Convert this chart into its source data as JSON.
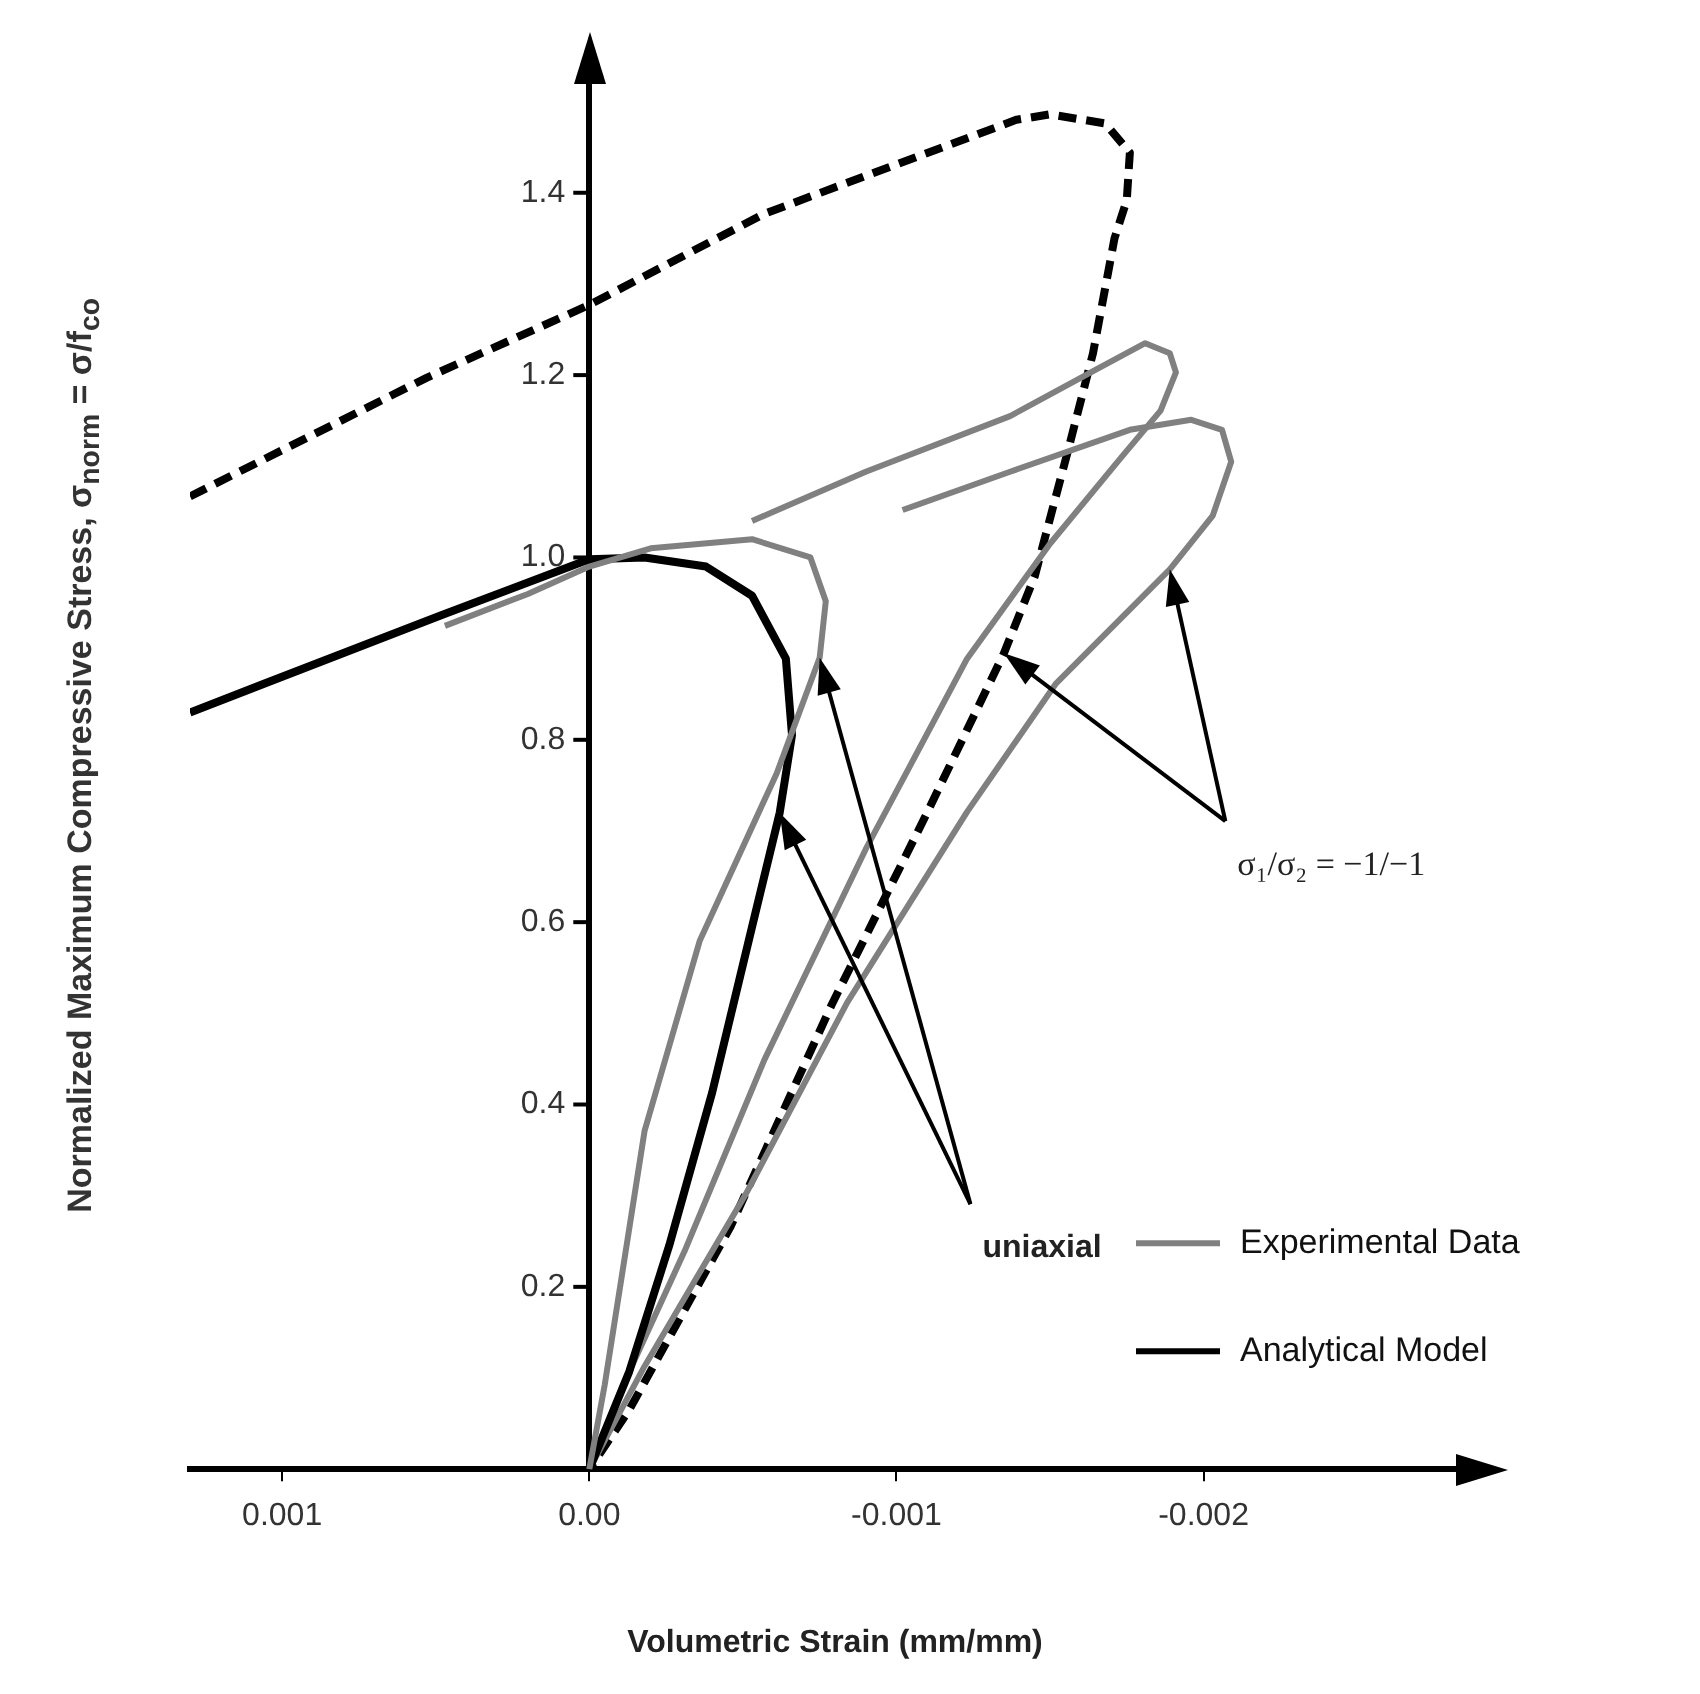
{
  "chart_data": {
    "type": "line",
    "xlabel": "Volumetric Strain (mm/mm)",
    "ylabel": "Normalized Maximum Compressive Stress, σ$_{norm}$ = σ/f$_{co}$",
    "xlim": [
      0.0013,
      -0.0029
    ],
    "ylim": [
      0,
      1.55
    ],
    "xticks": [
      0.001,
      {
        "value": 0,
        "label": "0.00"
      },
      -0.001,
      -0.002
    ],
    "yticks": [
      0.2,
      0.4,
      0.6,
      0.8,
      {
        "value": 1,
        "label": "1.0"
      },
      1.2,
      1.4
    ],
    "grid": false,
    "legend": "bottom right",
    "marker": "none",
    "series": [
      {
        "name": "Experimental Data",
        "color": "#808080",
        "line_style": "solid",
        "x": [
          0.00047,
          0.0002,
          0,
          -0.0002,
          -0.00053,
          -0.00072,
          -0.00077,
          -0.00075,
          -0.00061,
          -0.00036,
          -0.00018,
          -5e-05,
          0
        ],
        "values": [
          0.925,
          0.96,
          0.99,
          1.01,
          1.02,
          1.0,
          0.952,
          0.89,
          0.763,
          0.58,
          0.371,
          0.092,
          0
        ]
      },
      {
        "name": "Analytical Model",
        "color": "#000000",
        "line_style": "solid",
        "x": [
          0.0013,
          0.00048,
          0,
          -0.00018,
          -0.00038,
          -0.00053,
          -0.00064,
          -0.00066,
          -0.00062,
          -0.00053,
          -0.0004,
          -0.00026,
          -0.00013,
          0
        ],
        "values": [
          0.83,
          0.937,
          0.998,
          1.0,
          0.99,
          0.958,
          0.889,
          0.805,
          0.72,
          0.595,
          0.413,
          0.245,
          0.107,
          0
        ]
      },
      {
        "color": "#808080",
        "line_style": "solid",
        "x": [
          -0.00053,
          -0.0009,
          -0.00137,
          -0.00166,
          -0.00181,
          -0.00189,
          -0.00191,
          -0.00186,
          -0.00173,
          -0.0015,
          -0.00123,
          -0.0009,
          -0.00057,
          -0.00031,
          -0.00011,
          0
        ],
        "values": [
          1.04,
          1.094,
          1.155,
          1.208,
          1.235,
          1.224,
          1.203,
          1.161,
          1.109,
          1.015,
          0.889,
          0.68,
          0.449,
          0.239,
          0.092,
          0
        ]
      },
      {
        "color": "#808080",
        "line_style": "solid",
        "x": [
          -0.00102,
          -0.00137,
          -0.00176,
          -0.00196,
          -0.00206,
          -0.00209,
          -0.00203,
          -0.00189,
          -0.00152,
          -0.00123,
          -0.00084,
          -0.00051,
          -0.00018,
          0
        ],
        "values": [
          1.052,
          1.094,
          1.14,
          1.151,
          1.14,
          1.105,
          1.046,
          0.987,
          0.862,
          0.721,
          0.512,
          0.302,
          0.113,
          0
        ]
      },
      {
        "color": "#000000",
        "line_style": "dashed",
        "x": [
          0.0013,
          0.00053,
          0,
          -0.00057,
          -0.00139,
          -0.0015,
          -0.00168,
          -0.00176,
          -0.00175,
          -0.00171,
          -0.00164,
          -0.00156,
          -0.00145,
          -0.00135,
          -0.00123,
          -0.0011,
          -0.00079,
          -0.00046,
          -0.00013,
          0
        ],
        "values": [
          1.067,
          1.197,
          1.277,
          1.377,
          1.48,
          1.486,
          1.476,
          1.444,
          1.392,
          1.35,
          1.224,
          1.119,
          0.979,
          0.895,
          0.811,
          0.72,
          0.51,
          0.266,
          0.065,
          0
        ]
      }
    ],
    "annotations": [
      "uniaxial",
      "σ₁/σ₂ = −1/−1"
    ]
  }
}
